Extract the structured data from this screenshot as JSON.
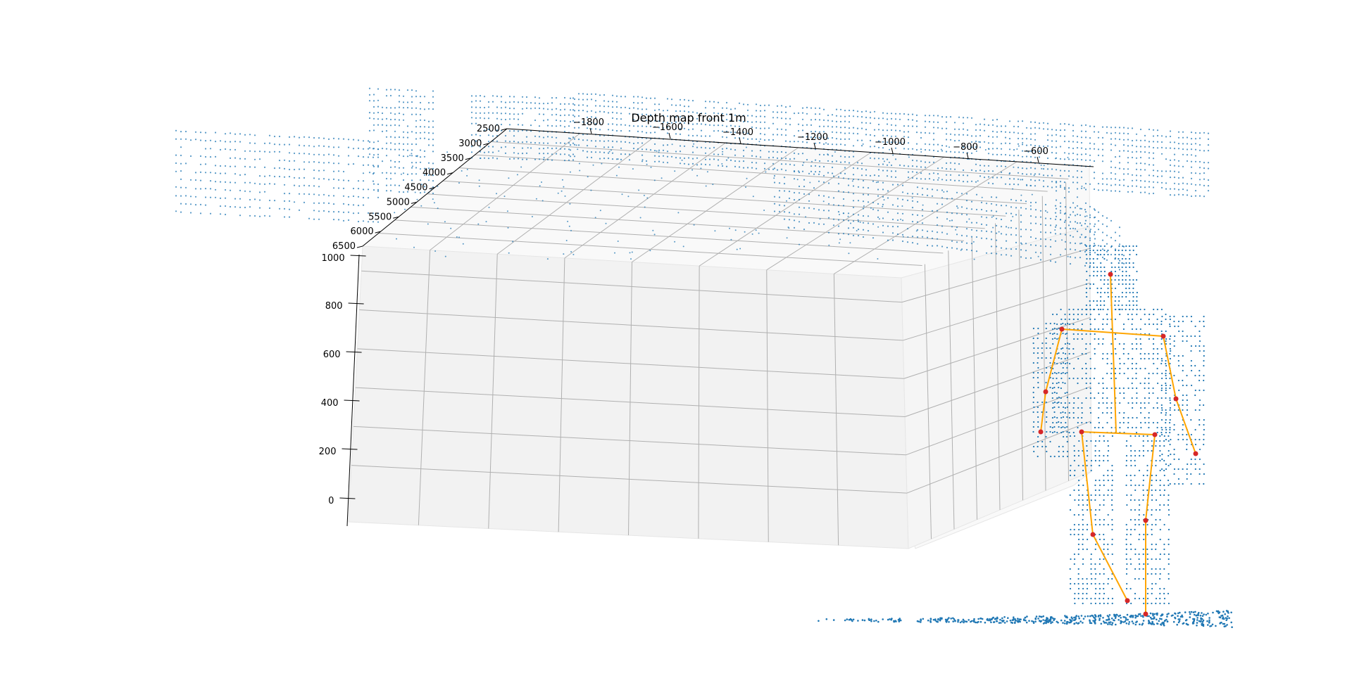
{
  "chart_data": {
    "type": "scatter",
    "projection": "3d",
    "title": "Depth map front 1m",
    "xlabel": "",
    "ylabel": "",
    "zlabel": "",
    "grid": true,
    "x_axis": {
      "ticks": [
        "−1800",
        "−1600",
        "−1400",
        "−1200",
        "−1000",
        "−800",
        "−600"
      ],
      "range": [
        -1950,
        -470
      ]
    },
    "depth_axis": {
      "ticks": [
        "2500",
        "3000",
        "3500",
        "4000",
        "4500",
        "5000",
        "5500",
        "6000",
        "6500"
      ],
      "range": [
        2500,
        6500
      ]
    },
    "vertical_axis": {
      "ticks": [
        "0",
        "200",
        "400",
        "600",
        "800",
        "1000"
      ],
      "range": [
        -100,
        1050
      ]
    },
    "series": [
      {
        "role": "point_cloud",
        "color": "#1f77b4"
      },
      {
        "role": "skeleton",
        "joint_color": "#d62728",
        "bone_color": "#ffa500",
        "joints": [
          {
            "id": "head",
            "x": -560,
            "z": 2700,
            "y": 1000
          },
          {
            "id": "left_shoulder",
            "x": -690,
            "z": 2700,
            "y": 720
          },
          {
            "id": "right_shoulder",
            "x": -430,
            "z": 2700,
            "y": 710
          },
          {
            "id": "left_elbow",
            "x": -720,
            "z": 2700,
            "y": 430
          },
          {
            "id": "right_elbow",
            "x": -400,
            "z": 2700,
            "y": 440
          },
          {
            "id": "left_hand",
            "x": -730,
            "z": 2700,
            "y": 270
          },
          {
            "id": "right_hand",
            "x": -350,
            "z": 2700,
            "y": 220
          },
          {
            "id": "left_hip",
            "x": -620,
            "z": 2700,
            "y": 290
          },
          {
            "id": "right_hip",
            "x": -450,
            "z": 2700,
            "y": 280
          },
          {
            "id": "left_knee",
            "x": -600,
            "z": 2700,
            "y": -80
          },
          {
            "id": "right_knee",
            "x": -470,
            "z": 2700,
            "y": -30
          },
          {
            "id": "left_foot",
            "x": -510,
            "z": 2700,
            "y": -330
          },
          {
            "id": "right_foot",
            "x": -470,
            "z": 2700,
            "y": -360
          }
        ],
        "bones": [
          [
            "head",
            "spine_base"
          ],
          [
            "left_shoulder",
            "right_shoulder"
          ],
          [
            "left_shoulder",
            "left_elbow"
          ],
          [
            "left_elbow",
            "left_hand"
          ],
          [
            "right_shoulder",
            "right_elbow"
          ],
          [
            "right_elbow",
            "right_hand"
          ],
          [
            "left_hip",
            "right_hip"
          ],
          [
            "left_hip",
            "left_knee"
          ],
          [
            "left_knee",
            "left_foot"
          ],
          [
            "right_hip",
            "right_knee"
          ],
          [
            "right_knee",
            "right_foot"
          ]
        ]
      }
    ]
  }
}
